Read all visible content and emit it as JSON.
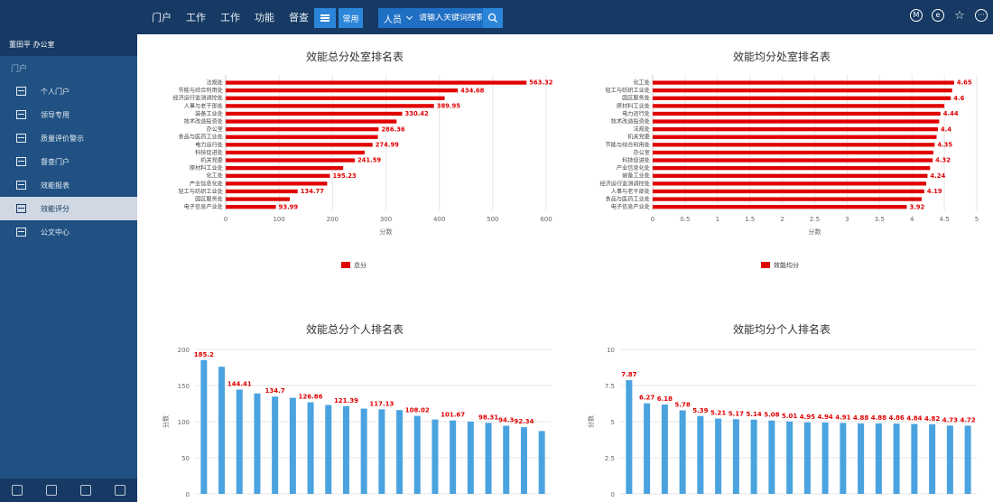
{
  "topbar": {
    "nav": [
      "门户",
      "工作",
      "工作",
      "功能",
      "督查"
    ],
    "favorite_label": "常用",
    "search_category": "人员",
    "search_placeholder": "请输入关键词搜索",
    "icons": [
      "m-circle-icon",
      "e-circle-icon",
      "star-icon",
      "more-circle-icon"
    ],
    "icon_text": {
      "m": "M",
      "e": "e",
      "star": "☆",
      "more": "···"
    }
  },
  "sidebar": {
    "user": "董田平  办公室",
    "section_label": "门户",
    "items": [
      {
        "label": "个人门户",
        "icon": "person-icon"
      },
      {
        "label": "领导专用",
        "icon": "layout-icon"
      },
      {
        "label": "质量评价警示",
        "icon": "grid-icon"
      },
      {
        "label": "督查门户",
        "icon": "monitor-icon"
      },
      {
        "label": "效能报表",
        "icon": "report-icon"
      },
      {
        "label": "效能评分",
        "icon": "table-icon",
        "active": true
      },
      {
        "label": "公文中心",
        "icon": "doc-icon"
      }
    ]
  },
  "colors": {
    "bar_red": "#e00000",
    "bar_blue": "#4aa3df",
    "label_red": "#e00000"
  },
  "chart_data": [
    {
      "type": "bar",
      "orientation": "horizontal",
      "title": "效能总分处室排名表",
      "xlabel": "分数",
      "legend": "总分",
      "xlim": [
        0,
        600
      ],
      "xticks": [
        0,
        100,
        200,
        300,
        400,
        500,
        600
      ],
      "categories": [
        "法规处",
        "节能与综合利用处",
        "经济运行监测调控处",
        "人事与老干部处",
        "装备工业处",
        "技术改造投资处",
        "办公室",
        "食品与医药工业处",
        "电力运行处",
        "科技促进处",
        "机关党委",
        "原材料工业处",
        "化工处",
        "产业信息化处",
        "轻工与纺织工业处",
        "园区服务处",
        "电子信息产业处"
      ],
      "values": [
        563.32,
        434.68,
        410,
        389.95,
        330.42,
        320,
        286.36,
        285,
        274.99,
        260,
        241.59,
        220,
        195.23,
        190,
        134.77,
        120,
        93.99
      ],
      "labels": [
        "563.32",
        "434.68",
        "",
        "389.95",
        "330.42",
        "",
        "286.36",
        "",
        "274.99",
        "",
        "241.59",
        "",
        "195.23",
        "",
        "134.77",
        "",
        "93.99"
      ]
    },
    {
      "type": "bar",
      "orientation": "horizontal",
      "title": "效能均分处室排名表",
      "xlabel": "分数",
      "legend": "效能均分",
      "xlim": [
        0,
        5
      ],
      "xticks": [
        "0",
        "0.5",
        "1",
        "1.5",
        "2",
        "2.5",
        "3",
        "3.5",
        "4",
        "4.5",
        "5"
      ],
      "categories": [
        "化工处",
        "轻工与纺织工业处",
        "园区服务处",
        "原材料工业处",
        "电力运行处",
        "技术改造投资处",
        "法规处",
        "机关党委",
        "节能与综合利用处",
        "办公室",
        "科技促进处",
        "产业信息化处",
        "装备工业处",
        "经济运行监测调控处",
        "人事与老干部处",
        "食品与医药工业处",
        "电子信息产业处"
      ],
      "values": [
        4.65,
        4.62,
        4.6,
        4.5,
        4.44,
        4.42,
        4.4,
        4.38,
        4.35,
        4.33,
        4.32,
        4.28,
        4.24,
        4.22,
        4.19,
        4.15,
        3.92
      ],
      "labels": [
        "4.65",
        "",
        "4.6",
        "",
        "4.44",
        "",
        "4.4",
        "",
        "4.35",
        "",
        "4.32",
        "",
        "4.24",
        "",
        "4.19",
        "",
        "3.92"
      ]
    },
    {
      "type": "bar",
      "orientation": "vertical",
      "title": "效能总分个人排名表",
      "ylabel": "分数",
      "ylim": [
        0,
        200
      ],
      "yticks": [
        0,
        50,
        100,
        150,
        200
      ],
      "values": [
        185.2,
        176,
        144.41,
        139,
        134.7,
        133,
        126.86,
        123,
        121.39,
        118,
        117.13,
        116,
        108.02,
        103,
        101.67,
        100,
        98.31,
        94.3,
        92.34,
        87
      ],
      "labels": [
        "185.2",
        "",
        "144.41",
        "",
        "134.7",
        "",
        "126.86",
        "",
        "121.39",
        "",
        "117.13",
        "",
        "108.02",
        "",
        "101.67",
        "",
        "98.31",
        "94.3",
        "92.34",
        ""
      ]
    },
    {
      "type": "bar",
      "orientation": "vertical",
      "title": "效能均分个人排名表",
      "ylabel": "分数",
      "ylim": [
        0,
        10
      ],
      "yticks": [
        "0",
        "2.5",
        "5",
        "7.5",
        "10"
      ],
      "values": [
        7.87,
        6.27,
        6.18,
        5.78,
        5.39,
        5.21,
        5.17,
        5.14,
        5.08,
        5.01,
        4.95,
        4.94,
        4.91,
        4.88,
        4.88,
        4.86,
        4.84,
        4.82,
        4.73,
        4.72
      ],
      "labels": [
        "7.87",
        "6.27",
        "6.18",
        "5.78",
        "5.39",
        "5.21",
        "5.17",
        "5.14",
        "5.08",
        "5.01",
        "4.95",
        "4.94",
        "4.91",
        "4.88",
        "4.88",
        "4.86",
        "4.84",
        "4.82",
        "4.73",
        "4.72"
      ]
    }
  ]
}
